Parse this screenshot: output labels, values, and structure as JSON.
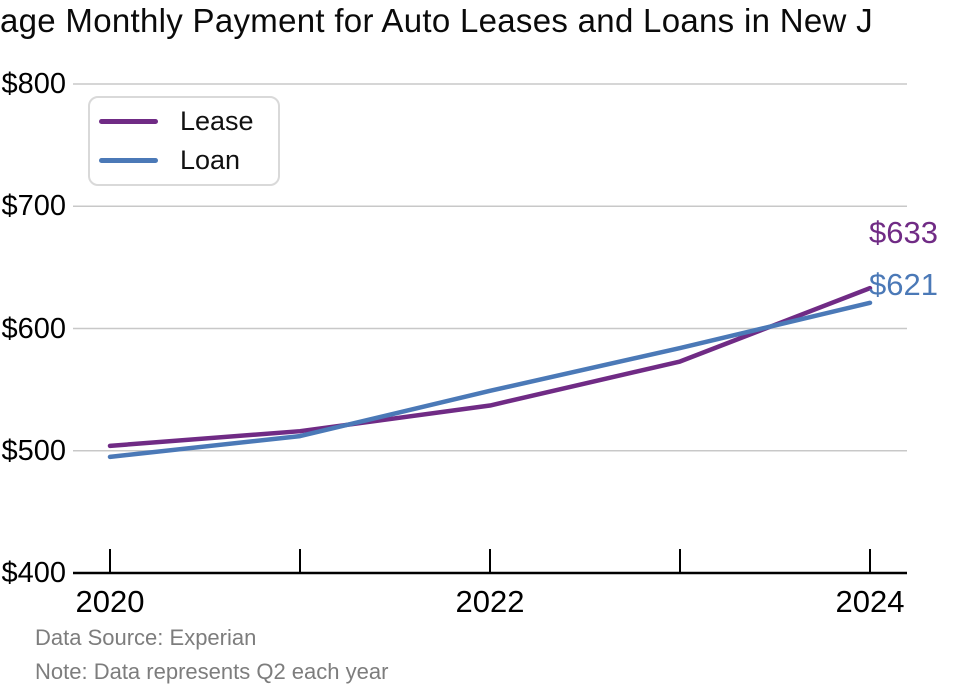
{
  "title": "age Monthly Payment for Auto Leases and Loans in New J",
  "colors": {
    "lease": "#702B85",
    "loan": "#4B79B7",
    "grid": "#c8c8c8",
    "axis": "#000000",
    "muted_text": "#7d7d7d"
  },
  "legend": {
    "entries": [
      "Lease",
      "Loan"
    ]
  },
  "footer": {
    "source": "Data Source: Experian",
    "note": "Note: Data represents Q2 each year"
  },
  "chart_data": {
    "type": "line",
    "title": "age Monthly Payment for Auto Leases and Loans in New J",
    "x": [
      2020,
      2021,
      2022,
      2023,
      2024
    ],
    "series": [
      {
        "name": "Lease",
        "color": "#702B85",
        "values": [
          504,
          516,
          537,
          573,
          633
        ],
        "end_label": "$633"
      },
      {
        "name": "Loan",
        "color": "#4B79B7",
        "values": [
          495,
          512,
          549,
          584,
          621
        ],
        "end_label": "$621"
      }
    ],
    "ylim": [
      400,
      800
    ],
    "yticks": [
      400,
      500,
      600,
      700,
      800
    ],
    "ytick_labels": [
      "$400",
      "$500",
      "$600",
      "$700",
      "$800"
    ],
    "xticks_all": [
      2020,
      2021,
      2022,
      2023,
      2024
    ],
    "xticks_labeled": [
      2020,
      2022,
      2024
    ],
    "xtick_labels": [
      "2020",
      "2022",
      "2024"
    ],
    "grid": "horizontal",
    "legend_position": "top-left",
    "xlabel": "",
    "ylabel": ""
  }
}
